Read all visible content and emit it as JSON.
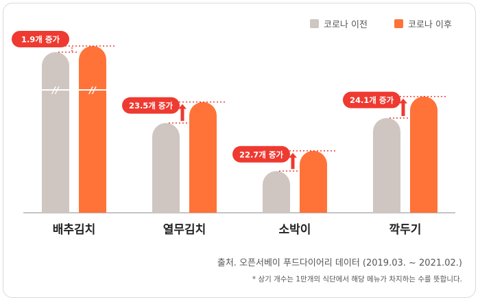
{
  "chart_data": {
    "type": "bar",
    "categories": [
      "배추김치",
      "열무김치",
      "소박이",
      "깍두기"
    ],
    "series": [
      {
        "name": "코로나 이전",
        "color": "#cfc5c1",
        "values": [
          null,
          100.6,
          46.7,
          106.2
        ]
      },
      {
        "name": "코로나 이후",
        "color": "#ff7338",
        "values": [
          null,
          124.1,
          69.4,
          130.3
        ]
      }
    ],
    "increase_labels": [
      "1.9개 증가",
      "23.5개 증가",
      "22.7개 증가",
      "24.1개 증가"
    ],
    "broken_axis_category": "배추김치",
    "label_color": "#ee3a30",
    "legend_position": "top-right"
  },
  "footer": {
    "source": "출처. 오픈서베이 푸드다이어리 데이터 (2019.03. ~ 2021.02.)",
    "note": "* 상기 개수는 1만개의 식단에서 해당 메뉴가 차지하는 수를 뜻합니다."
  }
}
